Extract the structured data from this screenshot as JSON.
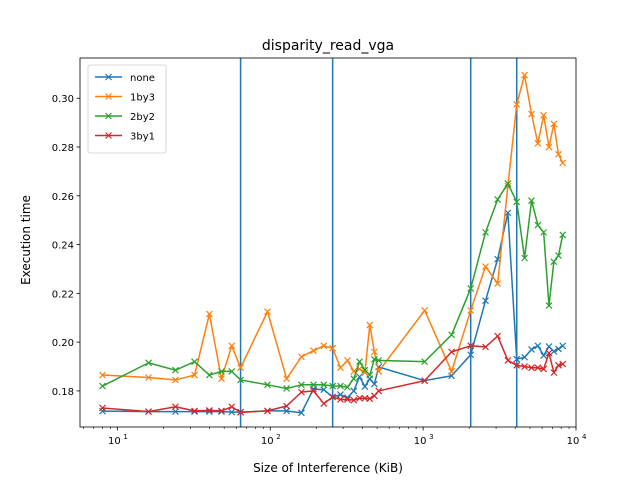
{
  "chart_data": {
    "type": "line",
    "title": "disparity_read_vga",
    "xlabel": "Size of Interference (KiB)",
    "ylabel": "Execution time",
    "xscale": "log",
    "xlim": [
      5.7,
      10000
    ],
    "ylim": [
      0.1652,
      0.3165
    ],
    "xticks": [
      10,
      100,
      1000,
      10000
    ],
    "xtick_labels": [
      "10",
      "10",
      "10",
      "10"
    ],
    "xtick_exponents": [
      "1",
      "2",
      "3",
      "4"
    ],
    "yticks": [
      0.18,
      0.2,
      0.22,
      0.24,
      0.26,
      0.28,
      0.3
    ],
    "ytick_labels": [
      "0.18",
      "0.20",
      "0.22",
      "0.24",
      "0.26",
      "0.28",
      "0.30"
    ],
    "grid": false,
    "legend": {
      "position": "top-left"
    },
    "marker": "x",
    "vlines": [
      64,
      256,
      2048,
      4096
    ],
    "vline_color": "#1f77b4",
    "series": [
      {
        "name": "none",
        "color": "#1f77b4",
        "x": [
          8,
          16,
          24,
          32,
          40,
          48,
          56,
          64,
          96,
          128,
          160,
          192,
          224,
          256,
          288,
          320,
          352,
          384,
          416,
          448,
          480,
          512,
          1024,
          1536,
          2048,
          2560,
          3072,
          3584,
          4096,
          4608,
          5120,
          5632,
          6144,
          6656,
          7168,
          7680,
          8192
        ],
        "y": [
          0.1717,
          0.1715,
          0.1715,
          0.1715,
          0.1715,
          0.1715,
          0.1713,
          0.1713,
          0.1718,
          0.1718,
          0.171,
          0.1808,
          0.1805,
          0.1775,
          0.1785,
          0.1772,
          0.18,
          0.1858,
          0.1818,
          0.185,
          0.1828,
          0.1898,
          0.1842,
          0.1862,
          0.1948,
          0.217,
          0.234,
          0.253,
          0.193,
          0.1938,
          0.197,
          0.1985,
          0.1945,
          0.1982,
          0.1962,
          0.1972,
          0.1985
        ]
      },
      {
        "name": "1by3",
        "color": "#ff7f0e",
        "x": [
          8,
          16,
          24,
          32,
          40,
          48,
          56,
          64,
          96,
          128,
          160,
          192,
          224,
          256,
          288,
          320,
          352,
          384,
          416,
          448,
          480,
          512,
          1024,
          1536,
          2048,
          2560,
          3072,
          3584,
          4096,
          4608,
          5120,
          5632,
          6144,
          6656,
          7168,
          7680,
          8192
        ],
        "y": [
          0.1865,
          0.1855,
          0.1845,
          0.1865,
          0.2115,
          0.185,
          0.1985,
          0.1895,
          0.2125,
          0.185,
          0.194,
          0.1965,
          0.1985,
          0.1975,
          0.1895,
          0.1925,
          0.188,
          0.189,
          0.1875,
          0.207,
          0.196,
          0.188,
          0.213,
          0.188,
          0.213,
          0.231,
          0.224,
          0.264,
          0.2975,
          0.3095,
          0.2935,
          0.2815,
          0.293,
          0.28,
          0.2895,
          0.277,
          0.2735
        ]
      },
      {
        "name": "2by2",
        "color": "#2ca02c",
        "x": [
          8,
          16,
          24,
          32,
          40,
          48,
          56,
          64,
          96,
          128,
          160,
          192,
          224,
          256,
          288,
          320,
          352,
          384,
          416,
          448,
          480,
          512,
          1024,
          1536,
          2048,
          2560,
          3072,
          3584,
          4096,
          4608,
          5120,
          5632,
          6144,
          6656,
          7168,
          7680,
          8192
        ],
        "y": [
          0.182,
          0.1915,
          0.1885,
          0.192,
          0.1865,
          0.188,
          0.188,
          0.1845,
          0.1825,
          0.181,
          0.1825,
          0.1825,
          0.1825,
          0.182,
          0.182,
          0.1815,
          0.185,
          0.192,
          0.1885,
          0.1865,
          0.193,
          0.1925,
          0.192,
          0.203,
          0.222,
          0.245,
          0.2585,
          0.265,
          0.2575,
          0.2345,
          0.258,
          0.248,
          0.245,
          0.215,
          0.233,
          0.2355,
          0.244
        ]
      },
      {
        "name": "3by1",
        "color": "#d62728",
        "x": [
          8,
          16,
          24,
          32,
          40,
          48,
          56,
          64,
          96,
          128,
          160,
          192,
          224,
          256,
          288,
          320,
          352,
          384,
          416,
          448,
          480,
          512,
          1024,
          1536,
          2048,
          2560,
          3072,
          3584,
          4096,
          4608,
          5120,
          5632,
          6144,
          6656,
          7168,
          7680,
          8192
        ],
        "y": [
          0.173,
          0.1715,
          0.1735,
          0.1718,
          0.172,
          0.1718,
          0.1735,
          0.1712,
          0.1718,
          0.1738,
          0.1795,
          0.18,
          0.1748,
          0.1775,
          0.1765,
          0.1765,
          0.1762,
          0.177,
          0.177,
          0.1768,
          0.178,
          0.18,
          0.1842,
          0.196,
          0.1985,
          0.198,
          0.2025,
          0.1925,
          0.1905,
          0.19,
          0.1895,
          0.1895,
          0.189,
          0.1955,
          0.1875,
          0.1905,
          0.191
        ]
      }
    ]
  }
}
